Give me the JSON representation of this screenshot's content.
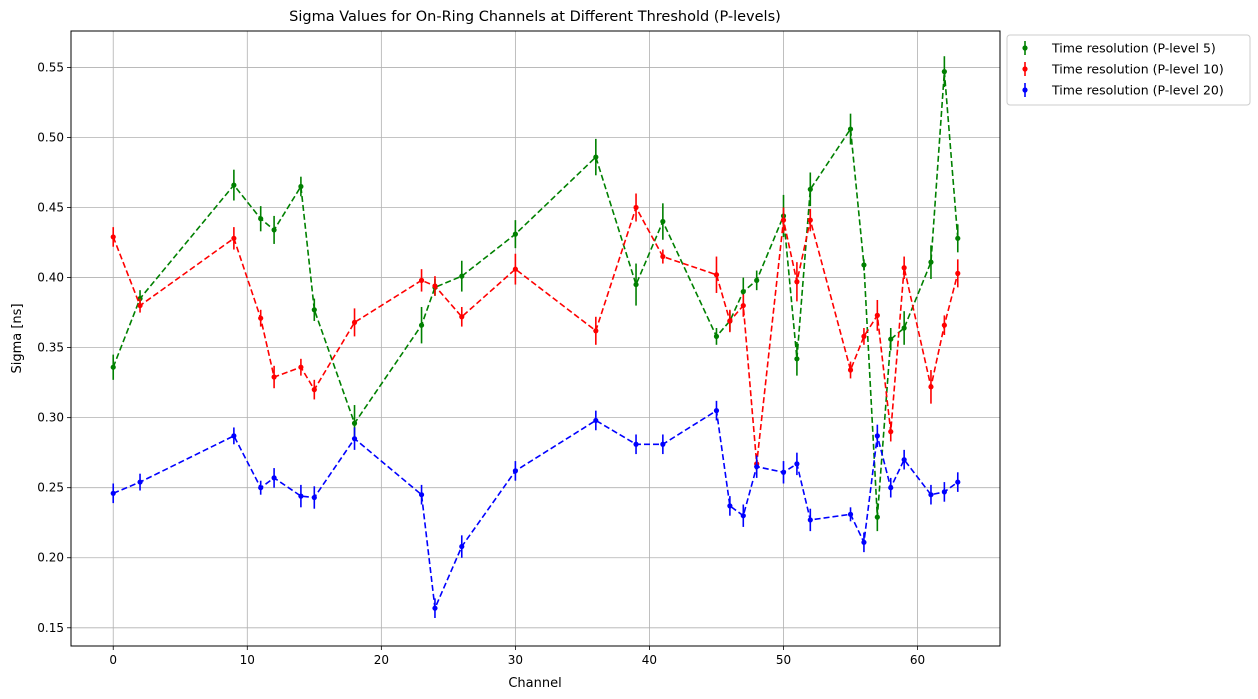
{
  "chart_data": {
    "type": "line",
    "title": "Sigma Values for On-Ring Channels at Different Threshold (P-levels)",
    "xlabel": "Channel",
    "ylabel": "Sigma [ns]",
    "xlim": [
      -3.15,
      66.15
    ],
    "ylim": [
      0.137,
      0.576
    ],
    "xticks": [
      0,
      10,
      20,
      30,
      40,
      50,
      60
    ],
    "yticks": [
      0.15,
      0.2,
      0.25,
      0.3,
      0.35,
      0.4,
      0.45,
      0.5,
      0.55
    ],
    "grid": true,
    "legend_position": "outside-top-right",
    "x": [
      0,
      2,
      9,
      11,
      12,
      14,
      15,
      18,
      23,
      24,
      26,
      30,
      36,
      39,
      41,
      45,
      46,
      47,
      48,
      50,
      51,
      52,
      55,
      56,
      57,
      58,
      59,
      61,
      62,
      63
    ],
    "series": [
      {
        "name": "Time resolution (P-level 5)",
        "color": "#008000",
        "values": [
          0.336,
          0.385,
          0.466,
          0.442,
          0.434,
          0.465,
          0.377,
          0.296,
          0.366,
          0.393,
          0.401,
          0.431,
          0.486,
          0.395,
          0.44,
          0.358,
          0.369,
          0.39,
          0.398,
          0.444,
          0.342,
          0.463,
          0.506,
          0.409,
          0.229,
          0.356,
          0.364,
          0.411,
          0.547,
          0.428
        ],
        "errors": [
          0.009,
          0.006,
          0.011,
          0.009,
          0.01,
          0.007,
          0.008,
          0.013,
          0.013,
          0.006,
          0.011,
          0.01,
          0.013,
          0.015,
          0.013,
          0.006,
          0.007,
          0.01,
          0.007,
          0.015,
          0.012,
          0.012,
          0.011,
          0.004,
          0.01,
          0.008,
          0.012,
          0.012,
          0.011,
          0.01
        ]
      },
      {
        "name": "Time resolution (P-level 10)",
        "color": "#ff0000",
        "values": [
          0.429,
          0.38,
          0.428,
          0.371,
          0.329,
          0.336,
          0.32,
          0.368,
          0.398,
          0.394,
          0.372,
          0.406,
          0.362,
          0.45,
          0.415,
          0.402,
          0.369,
          0.38,
          0.267,
          0.441,
          0.397,
          0.441,
          0.334,
          0.358,
          0.373,
          0.29,
          0.407,
          0.322,
          0.366,
          0.403
        ],
        "errors": [
          0.007,
          0.005,
          0.008,
          0.006,
          0.008,
          0.006,
          0.007,
          0.01,
          0.008,
          0.007,
          0.007,
          0.011,
          0.01,
          0.01,
          0.005,
          0.013,
          0.008,
          0.008,
          0.007,
          0.009,
          0.014,
          0.008,
          0.006,
          0.006,
          0.011,
          0.007,
          0.008,
          0.012,
          0.007,
          0.01
        ]
      },
      {
        "name": "Time resolution (P-level 20)",
        "color": "#0000ff",
        "values": [
          0.246,
          0.254,
          0.287,
          0.25,
          0.257,
          0.244,
          0.243,
          0.285,
          0.245,
          0.164,
          0.208,
          0.262,
          0.298,
          0.281,
          0.281,
          0.305,
          0.237,
          0.23,
          0.265,
          0.261,
          0.267,
          0.227,
          0.231,
          0.211,
          0.287,
          0.25,
          0.27,
          0.245,
          0.247,
          0.254
        ],
        "errors": [
          0.007,
          0.006,
          0.006,
          0.005,
          0.007,
          0.008,
          0.008,
          0.008,
          0.007,
          0.007,
          0.008,
          0.007,
          0.007,
          0.007,
          0.007,
          0.007,
          0.007,
          0.008,
          0.008,
          0.008,
          0.008,
          0.008,
          0.005,
          0.007,
          0.008,
          0.007,
          0.007,
          0.007,
          0.007,
          0.007
        ]
      }
    ]
  }
}
